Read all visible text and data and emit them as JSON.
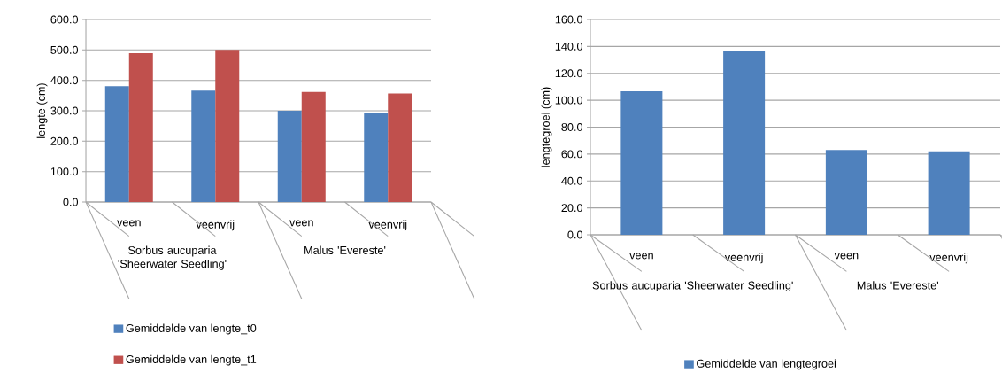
{
  "chart_data": [
    {
      "type": "bar",
      "ylabel": "lengte (cm)",
      "categories": [
        "veen",
        "veenvrij",
        "veen",
        "veenvrij"
      ],
      "annotations": [
        "Sorbus aucuparia 'Sheerwater Seedling'",
        "Malus 'Evereste'"
      ],
      "series": [
        {
          "name": "Gemiddelde van lengte_t0",
          "color": "#4f81bd",
          "values": [
            381,
            366,
            300,
            294
          ]
        },
        {
          "name": "Gemiddelde van lengte_t1",
          "color": "#c0504d",
          "values": [
            489,
            500,
            362,
            357
          ]
        }
      ],
      "ylim": [
        0,
        600
      ],
      "yticks": [
        {
          "value": 0,
          "label": "0.0"
        },
        {
          "value": 100,
          "label": "100.0"
        },
        {
          "value": 200,
          "label": "200.0"
        },
        {
          "value": 300,
          "label": "300.0"
        },
        {
          "value": 400,
          "label": "400.0"
        },
        {
          "value": 500,
          "label": "500.0"
        },
        {
          "value": 600,
          "label": "600.0"
        }
      ],
      "grid": "y",
      "legend": "bottom"
    },
    {
      "type": "bar",
      "ylabel": "lengtegroei (cm)",
      "categories": [
        "veen",
        "veenvrij",
        "veen",
        "veenvrij"
      ],
      "annotations": [
        "Sorbus aucuparia 'Sheerwater Seedling'",
        "Malus 'Evereste'"
      ],
      "series": [
        {
          "name": "Gemiddelde van lengtegroei",
          "color": "#4f81bd",
          "values": [
            106.6,
            136.4,
            63,
            62
          ]
        }
      ],
      "ylim": [
        0,
        160
      ],
      "yticks": [
        {
          "value": 0,
          "label": "0.0"
        },
        {
          "value": 20,
          "label": "20.0"
        },
        {
          "value": 40,
          "label": "40.0"
        },
        {
          "value": 60,
          "label": "60.0"
        },
        {
          "value": 80,
          "label": "80.0"
        },
        {
          "value": 100,
          "label": "100.0"
        },
        {
          "value": 120,
          "label": "120.0"
        },
        {
          "value": 140,
          "label": "140.0"
        },
        {
          "value": 160,
          "label": "160.0"
        }
      ],
      "grid": "y",
      "legend": "bottom"
    }
  ]
}
